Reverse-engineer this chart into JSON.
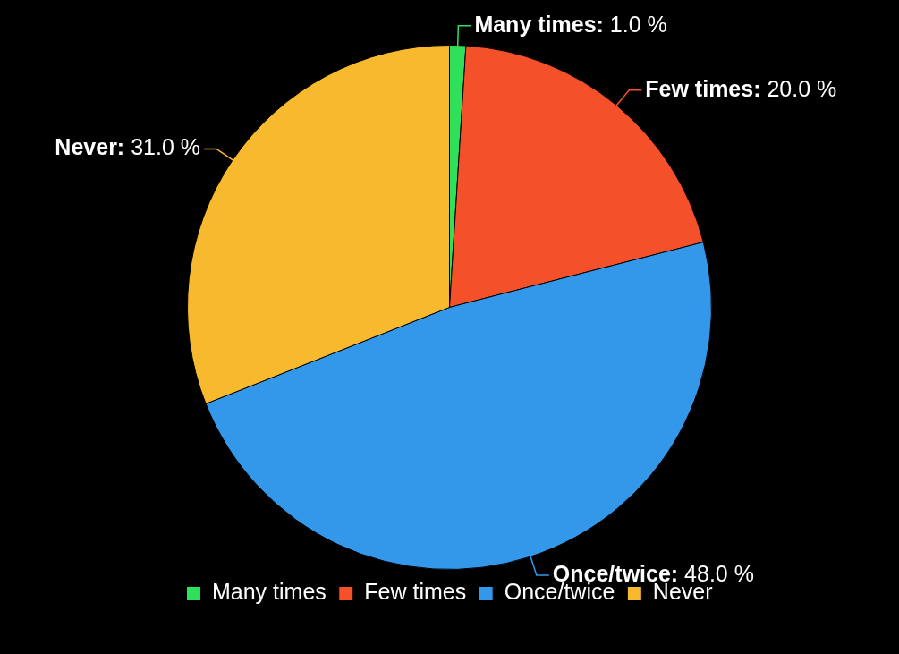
{
  "chart_data": {
    "type": "pie",
    "categories": [
      "Many times",
      "Few times",
      "Once/twice",
      "Never"
    ],
    "values": [
      1.0,
      20.0,
      48.0,
      31.0
    ],
    "value_labels": [
      "Many times: 1.0 %",
      "Few times: 20.0 %",
      "Once/twice: 48.0 %",
      "Never: 31.0 %"
    ],
    "colors": [
      "#2ee05a",
      "#f4502a",
      "#3498ea",
      "#f7b92e"
    ],
    "legend": "bottom"
  }
}
